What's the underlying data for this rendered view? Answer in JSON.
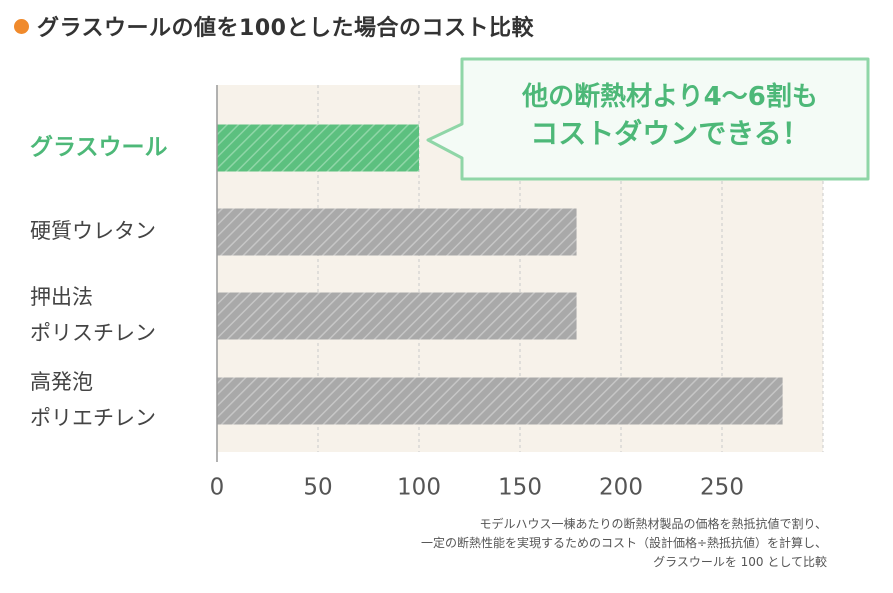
{
  "title": "グラスウールの値を100とした場合のコスト比較",
  "colors": {
    "accent_orange": "#f08a2c",
    "highlight_green": "#5cc07f",
    "green_text": "#4db878",
    "bar_gray": "#a9a9a9",
    "plot_bg": "#f7f2ea"
  },
  "callout": {
    "line1": "他の断熱材より4〜6割も",
    "line2": "コストダウンできる！"
  },
  "footnote": [
    "モデルハウス一棟あたりの断熱材製品の価格を熱抵抗値で割り、",
    "一定の断熱性能を実現するためのコスト（設計価格÷熱抵抗値）を計算し、",
    "グラスウールを 100 として比較"
  ],
  "chart_data": {
    "type": "bar",
    "orientation": "horizontal",
    "categories": [
      [
        "グラスウール"
      ],
      [
        "硬質ウレタン"
      ],
      [
        "押出法",
        "ポリスチレン"
      ],
      [
        "高発泡",
        "ポリエチレン"
      ]
    ],
    "values": [
      100,
      178,
      178,
      280
    ],
    "highlight_index": 0,
    "xlim": [
      0,
      300
    ],
    "xticks": [
      0,
      50,
      100,
      150,
      200,
      250
    ],
    "grid": true,
    "xlabel": "",
    "ylabel": ""
  }
}
